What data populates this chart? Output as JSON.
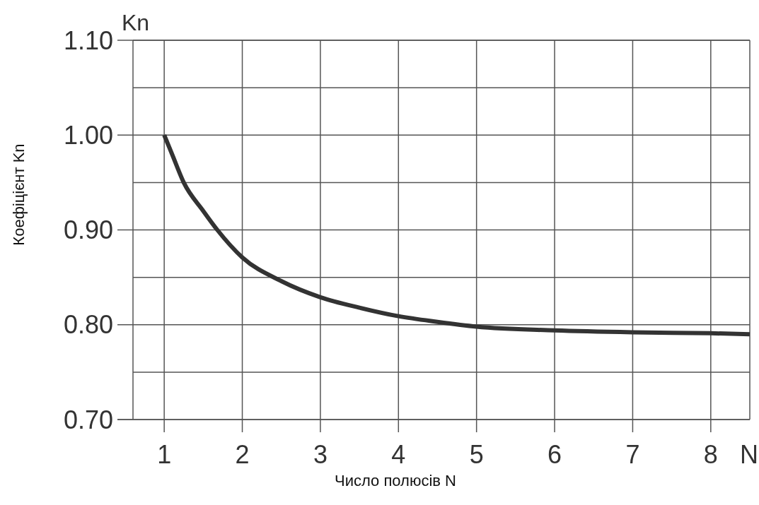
{
  "chart_data": {
    "type": "line",
    "xlabel": "Число полюсів N",
    "ylabel": "Коефіцієнт Kn",
    "annotations": [
      "Kn",
      "N"
    ],
    "xlim": [
      0.6,
      8.5
    ],
    "xticks": [
      1,
      2,
      3,
      4,
      5,
      6,
      7,
      8
    ],
    "ylim": [
      0.7,
      1.1
    ],
    "yticks": [
      {
        "value": 0.7,
        "label": "0.70"
      },
      {
        "value": 0.75,
        "label": null
      },
      {
        "value": 0.8,
        "label": "0.80"
      },
      {
        "value": 0.85,
        "label": null
      },
      {
        "value": 0.9,
        "label": "0.90"
      },
      {
        "value": 0.95,
        "label": null
      },
      {
        "value": 1.0,
        "label": "1.00"
      },
      {
        "value": 1.05,
        "label": null
      },
      {
        "value": 1.1,
        "label": "1.10"
      }
    ],
    "grid": true,
    "line_style": "solid",
    "marker": "none",
    "series": [
      {
        "color": "#333333",
        "x": [
          1,
          1.1,
          1.25,
          1.5,
          1.68,
          2,
          2.5,
          3,
          3.5,
          4,
          4.5,
          5,
          6,
          7,
          8,
          8.5
        ],
        "values": [
          1.0,
          0.98,
          0.95,
          0.92,
          0.9,
          0.871,
          0.846,
          0.829,
          0.818,
          0.809,
          0.803,
          0.798,
          0.794,
          0.792,
          0.791,
          0.79
        ]
      }
    ]
  }
}
